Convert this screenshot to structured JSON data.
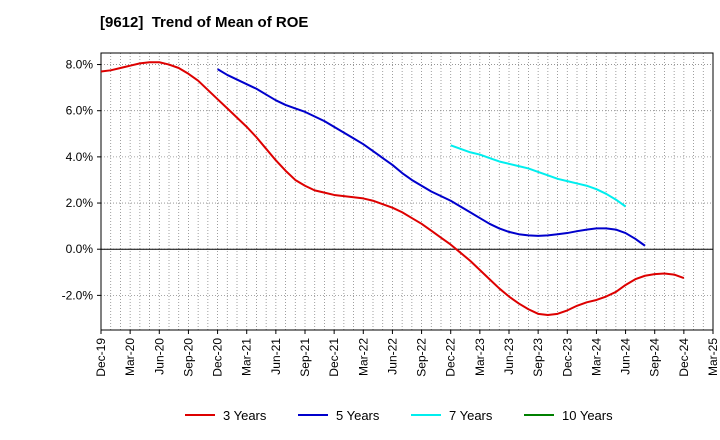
{
  "chart_data": {
    "type": "line",
    "title": "[9612]  Trend of Mean of ROE",
    "xlabel": "",
    "ylabel": "",
    "ylim": [
      -3.5,
      8.5
    ],
    "y_ticks": [
      8.0,
      6.0,
      4.0,
      2.0,
      0.0,
      -2.0
    ],
    "y_tick_labels": [
      "8.0%",
      "6.0%",
      "4.0%",
      "2.0%",
      "0.0%",
      "-2.0%"
    ],
    "x_tick_labels": [
      "Dec-19",
      "Mar-20",
      "Jun-20",
      "Sep-20",
      "Dec-20",
      "Mar-21",
      "Jun-21",
      "Sep-21",
      "Dec-21",
      "Mar-22",
      "Jun-22",
      "Sep-22",
      "Dec-22",
      "Mar-23",
      "Jun-23",
      "Sep-23",
      "Dec-23",
      "Mar-24",
      "Jun-24",
      "Sep-24",
      "Dec-24",
      "Mar-25"
    ],
    "grid": true,
    "legend_position": "bottom",
    "series": [
      {
        "name": "3 Years",
        "color": "#dd0000",
        "points": [
          [
            "2019-12",
            7.7
          ],
          [
            "2020-01",
            7.75
          ],
          [
            "2020-02",
            7.85
          ],
          [
            "2020-03",
            7.95
          ],
          [
            "2020-04",
            8.05
          ],
          [
            "2020-05",
            8.1
          ],
          [
            "2020-06",
            8.1
          ],
          [
            "2020-07",
            8.0
          ],
          [
            "2020-08",
            7.85
          ],
          [
            "2020-09",
            7.6
          ],
          [
            "2020-10",
            7.3
          ],
          [
            "2020-11",
            6.9
          ],
          [
            "2020-12",
            6.5
          ],
          [
            "2021-01",
            6.1
          ],
          [
            "2021-02",
            5.7
          ],
          [
            "2021-03",
            5.3
          ],
          [
            "2021-04",
            4.85
          ],
          [
            "2021-05",
            4.35
          ],
          [
            "2021-06",
            3.85
          ],
          [
            "2021-07",
            3.4
          ],
          [
            "2021-08",
            3.0
          ],
          [
            "2021-09",
            2.75
          ],
          [
            "2021-10",
            2.55
          ],
          [
            "2021-11",
            2.45
          ],
          [
            "2021-12",
            2.35
          ],
          [
            "2022-01",
            2.3
          ],
          [
            "2022-02",
            2.25
          ],
          [
            "2022-03",
            2.2
          ],
          [
            "2022-04",
            2.1
          ],
          [
            "2022-05",
            1.95
          ],
          [
            "2022-06",
            1.8
          ],
          [
            "2022-07",
            1.6
          ],
          [
            "2022-08",
            1.35
          ],
          [
            "2022-09",
            1.1
          ],
          [
            "2022-10",
            0.8
          ],
          [
            "2022-11",
            0.5
          ],
          [
            "2022-12",
            0.2
          ],
          [
            "2023-01",
            -0.15
          ],
          [
            "2023-02",
            -0.5
          ],
          [
            "2023-03",
            -0.9
          ],
          [
            "2023-04",
            -1.3
          ],
          [
            "2023-05",
            -1.7
          ],
          [
            "2023-06",
            -2.05
          ],
          [
            "2023-07",
            -2.35
          ],
          [
            "2023-08",
            -2.6
          ],
          [
            "2023-09",
            -2.8
          ],
          [
            "2023-10",
            -2.85
          ],
          [
            "2023-11",
            -2.8
          ],
          [
            "2023-12",
            -2.65
          ],
          [
            "2024-01",
            -2.45
          ],
          [
            "2024-02",
            -2.3
          ],
          [
            "2024-03",
            -2.2
          ],
          [
            "2024-04",
            -2.05
          ],
          [
            "2024-05",
            -1.85
          ],
          [
            "2024-06",
            -1.55
          ],
          [
            "2024-07",
            -1.3
          ],
          [
            "2024-08",
            -1.15
          ],
          [
            "2024-09",
            -1.08
          ],
          [
            "2024-10",
            -1.05
          ],
          [
            "2024-11",
            -1.1
          ],
          [
            "2024-12",
            -1.25
          ]
        ]
      },
      {
        "name": "5 Years",
        "color": "#0000cc",
        "points": [
          [
            "2020-12",
            7.8
          ],
          [
            "2021-01",
            7.55
          ],
          [
            "2021-02",
            7.35
          ],
          [
            "2021-03",
            7.15
          ],
          [
            "2021-04",
            6.95
          ],
          [
            "2021-05",
            6.7
          ],
          [
            "2021-06",
            6.45
          ],
          [
            "2021-07",
            6.25
          ],
          [
            "2021-08",
            6.1
          ],
          [
            "2021-09",
            5.95
          ],
          [
            "2021-10",
            5.75
          ],
          [
            "2021-11",
            5.55
          ],
          [
            "2021-12",
            5.3
          ],
          [
            "2022-01",
            5.05
          ],
          [
            "2022-02",
            4.8
          ],
          [
            "2022-03",
            4.55
          ],
          [
            "2022-04",
            4.25
          ],
          [
            "2022-05",
            3.95
          ],
          [
            "2022-06",
            3.65
          ],
          [
            "2022-07",
            3.3
          ],
          [
            "2022-08",
            3.0
          ],
          [
            "2022-09",
            2.75
          ],
          [
            "2022-10",
            2.5
          ],
          [
            "2022-11",
            2.3
          ],
          [
            "2022-12",
            2.1
          ],
          [
            "2023-01",
            1.85
          ],
          [
            "2023-02",
            1.6
          ],
          [
            "2023-03",
            1.35
          ],
          [
            "2023-04",
            1.1
          ],
          [
            "2023-05",
            0.9
          ],
          [
            "2023-06",
            0.75
          ],
          [
            "2023-07",
            0.65
          ],
          [
            "2023-08",
            0.6
          ],
          [
            "2023-09",
            0.58
          ],
          [
            "2023-10",
            0.6
          ],
          [
            "2023-11",
            0.65
          ],
          [
            "2023-12",
            0.7
          ],
          [
            "2024-01",
            0.78
          ],
          [
            "2024-02",
            0.85
          ],
          [
            "2024-03",
            0.9
          ],
          [
            "2024-04",
            0.9
          ],
          [
            "2024-05",
            0.85
          ],
          [
            "2024-06",
            0.7
          ],
          [
            "2024-07",
            0.45
          ],
          [
            "2024-08",
            0.15
          ]
        ]
      },
      {
        "name": "7 Years",
        "color": "#00eeee",
        "points": [
          [
            "2022-12",
            4.5
          ],
          [
            "2023-01",
            4.35
          ],
          [
            "2023-02",
            4.2
          ],
          [
            "2023-03",
            4.1
          ],
          [
            "2023-04",
            3.95
          ],
          [
            "2023-05",
            3.8
          ],
          [
            "2023-06",
            3.7
          ],
          [
            "2023-07",
            3.6
          ],
          [
            "2023-08",
            3.5
          ],
          [
            "2023-09",
            3.35
          ],
          [
            "2023-10",
            3.2
          ],
          [
            "2023-11",
            3.05
          ],
          [
            "2023-12",
            2.95
          ],
          [
            "2024-01",
            2.85
          ],
          [
            "2024-02",
            2.75
          ],
          [
            "2024-03",
            2.6
          ],
          [
            "2024-04",
            2.4
          ],
          [
            "2024-05",
            2.15
          ],
          [
            "2024-06",
            1.85
          ]
        ]
      },
      {
        "name": "10 Years",
        "color": "#008000",
        "points": []
      }
    ]
  }
}
